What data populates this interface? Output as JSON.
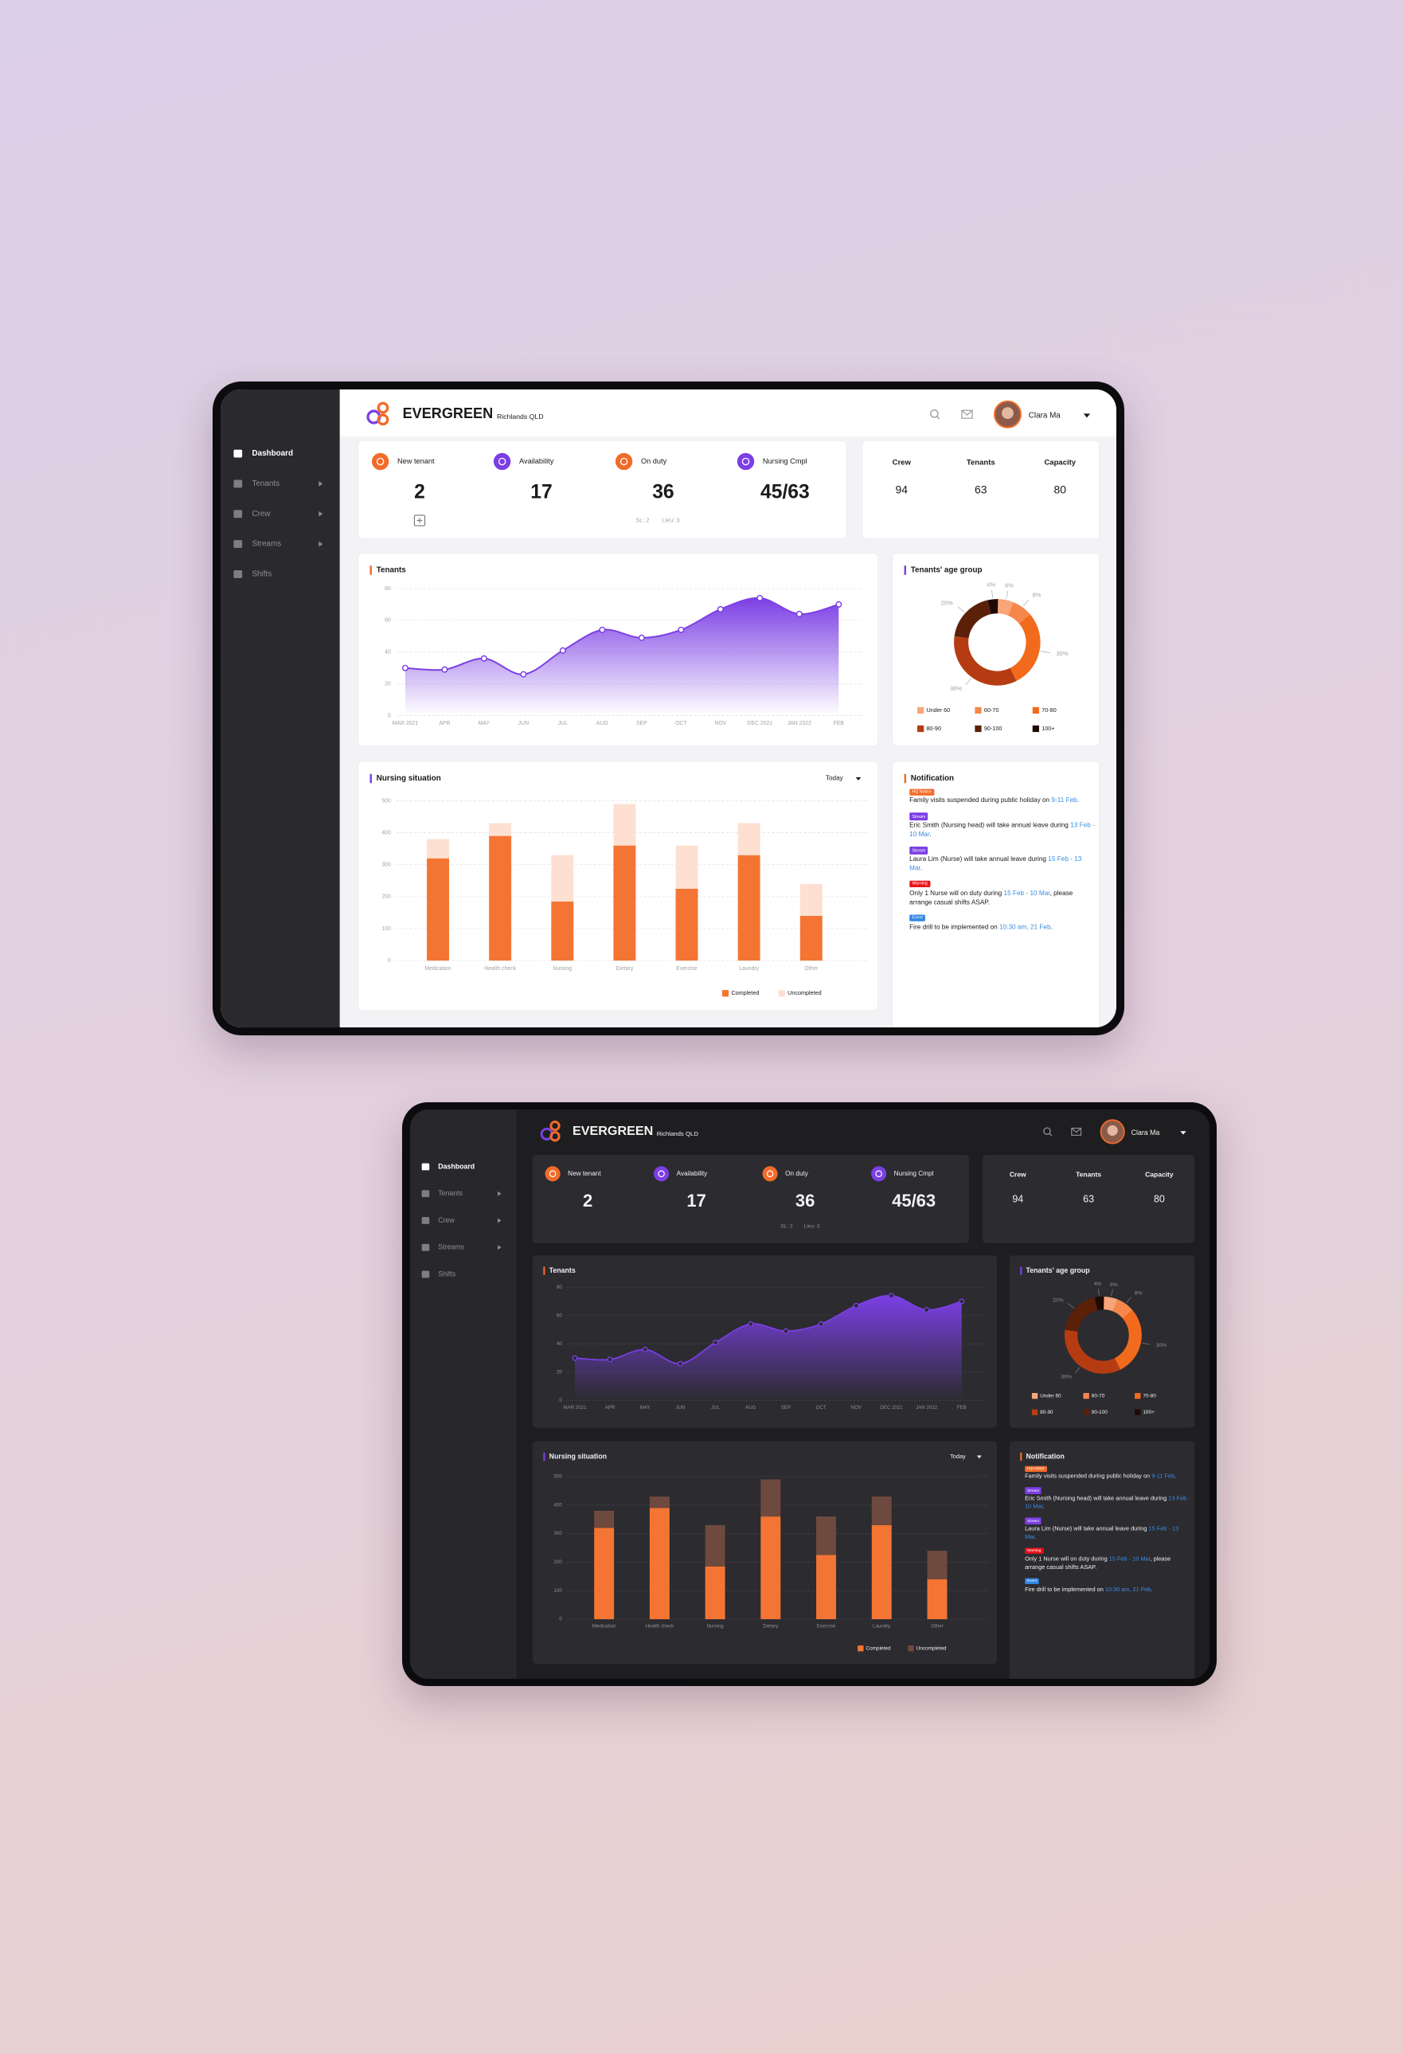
{
  "brand": {
    "name": "EVERGREEN",
    "location": "Richlands QLD"
  },
  "user": {
    "name": "Clara Ma"
  },
  "sidebar": [
    "Dashboard",
    "Tenants",
    "Crew",
    "Streams",
    "Shifts"
  ],
  "stats": [
    {
      "label": "New tenant",
      "value": 2,
      "color": "#f26b2a"
    },
    {
      "label": "Availability",
      "value": 17,
      "color": "#7b3fe4"
    },
    {
      "label": "On duty",
      "value": 36,
      "color": "#f26b2a"
    },
    {
      "label": "Nursing Cmpl",
      "value": "45/63",
      "color": "#7b3fe4"
    }
  ],
  "on_duty_note": [
    "SL: 2",
    "Lieu: 3"
  ],
  "capacity": [
    {
      "label": "Crew",
      "value": 94
    },
    {
      "label": "Tenants",
      "value": 63
    },
    {
      "label": "Capacity",
      "value": 80
    }
  ],
  "tenants_chart": {
    "type": "area",
    "title": "Tenants",
    "categories": [
      "MAR 2021",
      "APR",
      "MAY",
      "JUN",
      "JUL",
      "AUG",
      "SEP",
      "OCT",
      "NOV",
      "DEC 2021",
      "JAN 2022",
      "FEB"
    ],
    "values": [
      30,
      29,
      36,
      26,
      41,
      54,
      49,
      54,
      67,
      74,
      64,
      70
    ],
    "color": "#7b3fe4",
    "ylim": [
      0,
      80
    ],
    "yticks": [
      0,
      20,
      40,
      60,
      80
    ],
    "grid": true
  },
  "age_chart": {
    "type": "donut",
    "title": "Tenants' age group",
    "categories": [
      "Under 60",
      "60-70",
      "70-80",
      "80-90",
      "90-100",
      "100+"
    ],
    "values": [
      6,
      8,
      30,
      36,
      20,
      4
    ],
    "value_labels": [
      "6%",
      "8%",
      "30%",
      "36%",
      "20%",
      "4%"
    ],
    "colors": [
      "#f9a57a",
      "#f6874a",
      "#f26b1d",
      "#b53c12",
      "#5c2008",
      "#1e0a03"
    ]
  },
  "nursing_chart": {
    "type": "stacked_bar",
    "title": "Nursing situation",
    "filter": "Today",
    "categories": [
      "Medication",
      "Health check",
      "Nursing",
      "Dietary",
      "Exercise",
      "Laundry",
      "Other"
    ],
    "series": [
      {
        "name": "Completed",
        "color": "#f47533",
        "dark_color": "#f47533",
        "values": [
          320,
          390,
          185,
          360,
          225,
          330,
          140
        ]
      },
      {
        "name": "Uncompleted",
        "color": "#fde0d2",
        "dark_color": "#6e4a3e",
        "values": [
          60,
          40,
          145,
          130,
          135,
          100,
          100
        ]
      }
    ],
    "ylim": [
      0,
      500
    ],
    "yticks": [
      0,
      100,
      200,
      300,
      400,
      500
    ],
    "grid": true
  },
  "notifications": {
    "title": "Notification",
    "items": [
      {
        "tag": "HQ Notice",
        "tag_color": "#f26b2a",
        "text": "Family visits suspended during public holiday on ",
        "link": "9-11 Feb",
        "end": "."
      },
      {
        "tag": "Stream",
        "tag_color": "#7b3fe4",
        "text": "Eric Smith (Nursing head) will take annual leave during ",
        "link": "13 Feb - 10 Mar",
        "end": "."
      },
      {
        "tag": "Stream",
        "tag_color": "#7b3fe4",
        "text": "Laura Lim (Nurse) will take annual leave during ",
        "link": "15 Feb - 13 Mar",
        "end": "."
      },
      {
        "tag": "Warning",
        "tag_color": "#e8141c",
        "text": "Only 1 Nurse will on duty during ",
        "link": "15 Feb - 10 Mar",
        "end": ", please arrange casual shifts ASAP."
      },
      {
        "tag": "Event",
        "tag_color": "#2f86e0",
        "text": "Fire drill to be implemented on ",
        "link": "10:30 am, 21 Feb",
        "end": "."
      }
    ]
  }
}
